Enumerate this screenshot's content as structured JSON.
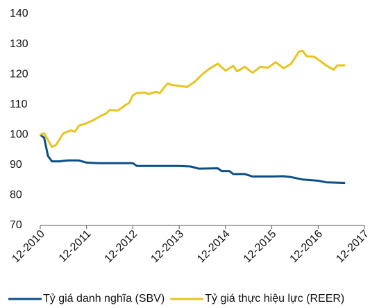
{
  "chart_data": {
    "type": "line",
    "xticks": [
      {
        "value": "2010-12",
        "label": "12-2010"
      },
      {
        "value": "2011-12",
        "label": "12-2011"
      },
      {
        "value": "2012-12",
        "label": "12-2012"
      },
      {
        "value": "2013-12",
        "label": "12-2013"
      },
      {
        "value": "2014-12",
        "label": "12-2014"
      },
      {
        "value": "2015-12",
        "label": "12-2015"
      },
      {
        "value": "2016-12",
        "label": "12-2016"
      },
      {
        "value": "2017-12",
        "label": "12-2017"
      }
    ],
    "xlim": [
      "2010-12",
      "2017-12"
    ],
    "ylim": [
      70,
      140
    ],
    "yticks": [
      70,
      80,
      90,
      100,
      110,
      120,
      130,
      140
    ],
    "grid": false,
    "legend": "bottom",
    "series": [
      {
        "name": "Tỷ giá danh nghĩa (SBV)",
        "color": "#0b4f85",
        "x": [
          "2010-12",
          "2011-01",
          "2011-02",
          "2011-03",
          "2011-05",
          "2011-07",
          "2011-10",
          "2011-12",
          "2012-03",
          "2012-06",
          "2012-09",
          "2012-12",
          "2013-01",
          "2013-06",
          "2013-12",
          "2014-03",
          "2014-05",
          "2014-10",
          "2014-11",
          "2015-01",
          "2015-02",
          "2015-05",
          "2015-07",
          "2015-12",
          "2016-03",
          "2016-05",
          "2016-08",
          "2016-12",
          "2017-02",
          "2017-07"
        ],
        "values": [
          100,
          99,
          93,
          91.2,
          91.2,
          91.5,
          91.5,
          90.8,
          90.6,
          90.6,
          90.6,
          90.6,
          89.7,
          89.7,
          89.7,
          89.5,
          88.8,
          88.9,
          88,
          88,
          87,
          87,
          86.2,
          86.2,
          86.3,
          86,
          85.2,
          84.8,
          84.3,
          84.1
        ]
      },
      {
        "name": "Tỷ giá thực hiệu lực (REER)",
        "color": "#e8c420",
        "x": [
          "2010-12",
          "2011-01",
          "2011-03",
          "2011-04",
          "2011-06",
          "2011-08",
          "2011-09",
          "2011-10",
          "2011-12",
          "2012-02",
          "2012-04",
          "2012-05",
          "2012-06",
          "2012-08",
          "2012-09",
          "2012-10",
          "2012-11",
          "2012-12",
          "2013-01",
          "2013-03",
          "2013-04",
          "2013-06",
          "2013-07",
          "2013-08",
          "2013-09",
          "2013-10",
          "2013-12",
          "2014-02",
          "2014-04",
          "2014-06",
          "2014-08",
          "2014-10",
          "2014-12",
          "2015-02",
          "2015-03",
          "2015-05",
          "2015-07",
          "2015-09",
          "2015-11",
          "2016-01",
          "2016-03",
          "2016-05",
          "2016-07",
          "2016-08",
          "2016-09",
          "2016-11",
          "2017-01",
          "2017-02",
          "2017-04",
          "2017-05",
          "2017-07"
        ],
        "values": [
          100,
          100.5,
          96,
          96.5,
          100.5,
          101.5,
          101,
          103,
          103.8,
          105,
          106.5,
          107,
          108.2,
          108,
          108.8,
          109.8,
          110.5,
          113,
          113.8,
          114,
          113.5,
          114.2,
          113.8,
          115.5,
          117,
          116.5,
          116.2,
          115.8,
          117.5,
          120,
          122,
          123.5,
          121.2,
          122.8,
          121,
          122.5,
          120.5,
          122.5,
          122.2,
          124,
          122,
          123.5,
          127.5,
          127.8,
          126,
          125.8,
          124,
          123,
          121.5,
          123,
          123
        ]
      }
    ]
  }
}
